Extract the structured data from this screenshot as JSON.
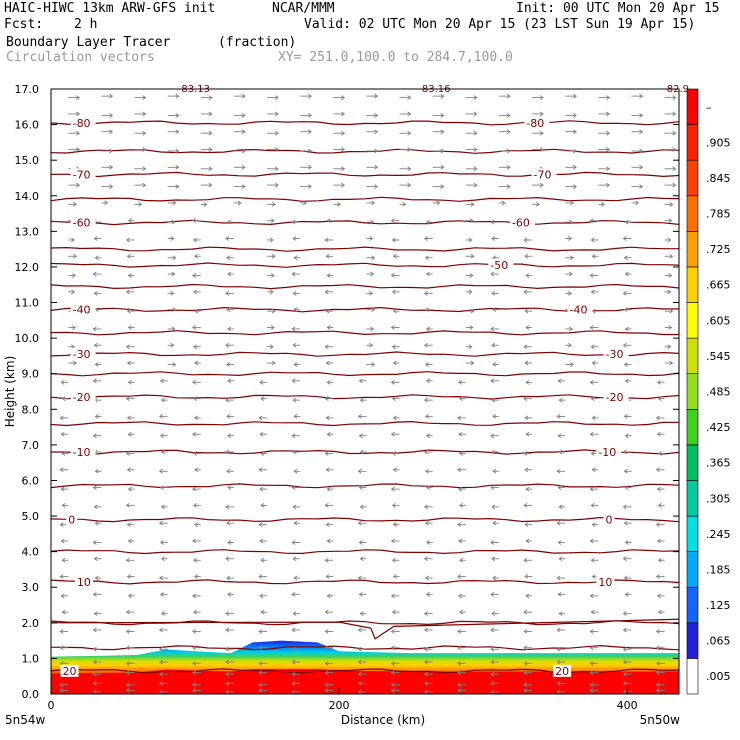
{
  "header": {
    "model": "HAIC-HIWC 13km ARW-GFS init",
    "org": "NCAR/MMM",
    "init": "Init: 00 UTC Mon 20 Apr 15",
    "fcst_label": "Fcst:",
    "fcst_value": "2 h",
    "valid": "Valid: 02 UTC Mon 20 Apr 15 (23 LST Sun 19 Apr 15)",
    "field": "Boundary Layer Tracer",
    "field_units": "(fraction)",
    "vectors": "Circulation vectors",
    "xy": "XY= 251.0,100.0 to 284.7,100.0"
  },
  "chart_data": {
    "type": "heatmap",
    "xlabel": "Distance (km)",
    "ylabel": "Height (km)",
    "xlim": [
      0,
      436
    ],
    "ylim": [
      0,
      17
    ],
    "x_ticks": [
      "0",
      "200",
      "400"
    ],
    "x_tick_values": [
      0,
      200,
      400
    ],
    "x_end_labels": [
      "5n54w",
      "5n50w"
    ],
    "y_ticks": [
      "0.0",
      "1.0",
      "2.0",
      "3.0",
      "4.0",
      "5.0",
      "6.0",
      "7.0",
      "8.0",
      "9.0",
      "10.0",
      "11.0",
      "12.0",
      "13.0",
      "14.0",
      "15.0",
      "16.0",
      "17.0"
    ],
    "colorbar": {
      "labels": [
        ".005",
        ".065",
        ".125",
        ".185",
        ".245",
        ".305",
        ".365",
        ".425",
        ".485",
        ".545",
        ".605",
        ".665",
        ".725",
        ".785",
        ".845",
        ".905",
        "–"
      ],
      "colors": [
        "#ffffff",
        "#2020e0",
        "#1464ff",
        "#00aaff",
        "#00e0e0",
        "#00c8a0",
        "#00c060",
        "#40d020",
        "#90e020",
        "#d0e000",
        "#ffff00",
        "#ffd000",
        "#ffa000",
        "#ff7000",
        "#ff4000",
        "#ff2000",
        "#ff0000"
      ]
    },
    "tracer_top_km": [
      [
        0,
        1.05
      ],
      [
        40,
        1.08
      ],
      [
        60,
        1.1
      ],
      [
        80,
        1.25
      ],
      [
        100,
        1.2
      ],
      [
        125,
        1.15
      ],
      [
        140,
        1.45
      ],
      [
        160,
        1.5
      ],
      [
        185,
        1.45
      ],
      [
        200,
        1.2
      ],
      [
        250,
        1.15
      ],
      [
        300,
        1.15
      ],
      [
        350,
        1.15
      ],
      [
        400,
        1.15
      ],
      [
        436,
        1.15
      ]
    ],
    "isotherms": [
      {
        "value": 20,
        "label": "20",
        "height_km": 0.65,
        "label_positions_km": [
          8,
          350
        ]
      },
      {
        "value": 10,
        "label": "10",
        "height_km": 3.15,
        "label_positions_km": [
          18,
          380
        ]
      },
      {
        "value": 0,
        "label": "0",
        "height_km": 4.9,
        "label_positions_km": [
          12,
          385
        ]
      },
      {
        "value": -10,
        "label": "-10",
        "height_km": 6.8,
        "label_positions_km": [
          15,
          380
        ]
      },
      {
        "value": -20,
        "label": "-20",
        "height_km": 8.35,
        "label_positions_km": [
          15,
          385
        ]
      },
      {
        "value": -30,
        "label": "-30",
        "height_km": 9.55,
        "label_positions_km": [
          15,
          385
        ]
      },
      {
        "value": -40,
        "label": "-40",
        "height_km": 10.8,
        "label_positions_km": [
          15,
          360
        ]
      },
      {
        "value": -50,
        "label": "-50",
        "height_km": 12.05,
        "label_positions_km": [
          305
        ]
      },
      {
        "value": -60,
        "label": "-60",
        "height_km": 13.25,
        "label_positions_km": [
          15,
          320
        ]
      },
      {
        "value": -70,
        "label": "-70",
        "height_km": 14.6,
        "label_positions_km": [
          15,
          335
        ]
      },
      {
        "value": -80,
        "label": "-80",
        "height_km": 16.05,
        "label_positions_km": [
          15,
          330
        ]
      }
    ],
    "top_labels": [
      "-83.13",
      "-83.16",
      "-82.9"
    ],
    "top_label_positions_km": [
      88,
      255,
      425
    ],
    "extra_isotherm_heights_km": [
      15.25,
      13.9,
      12.5,
      11.45,
      10.15,
      9.0,
      7.6,
      5.85,
      4.0,
      2.0,
      1.3
    ],
    "vector_levels_km": [
      0.1,
      0.3,
      0.6,
      0.9,
      1.3,
      1.8,
      2.3,
      2.8,
      3.3,
      3.8,
      4.3,
      4.8,
      5.3,
      5.8,
      6.3,
      6.8,
      7.3,
      7.8,
      8.3,
      8.8,
      9.3,
      9.8,
      10.3,
      10.8,
      11.3,
      11.8,
      12.3,
      12.8,
      13.3,
      13.8,
      14.3,
      14.8,
      15.3,
      15.8,
      16.3,
      16.8
    ],
    "vector_columns_km": [
      12,
      35,
      58,
      81,
      104,
      127,
      150,
      173,
      196,
      219,
      242,
      265,
      288,
      311,
      334,
      357,
      380,
      403,
      426
    ],
    "vector_color": "#808080",
    "isotherm_color": "#800000"
  }
}
